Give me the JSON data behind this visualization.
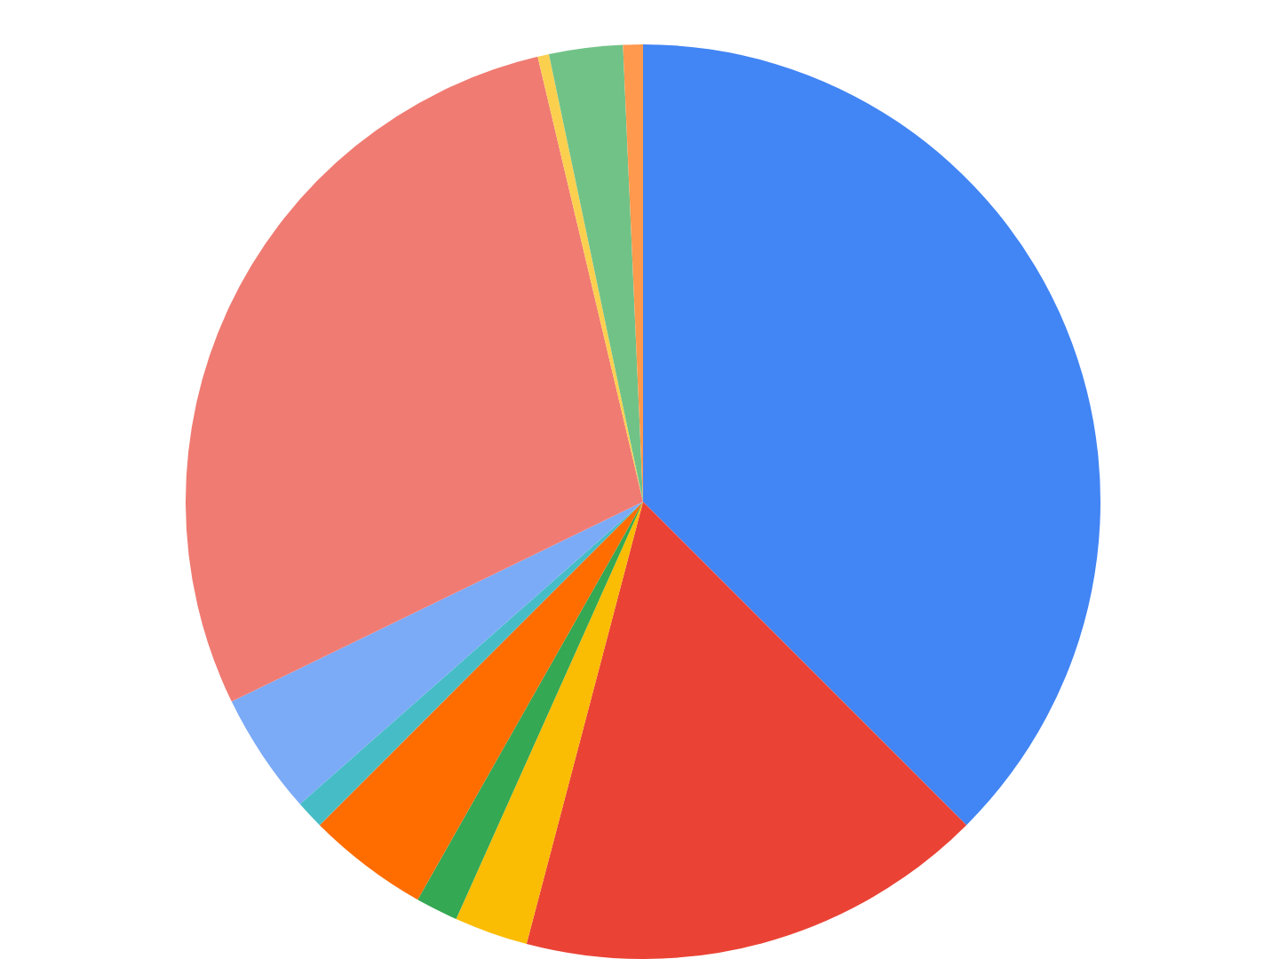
{
  "chart_data": {
    "type": "pie",
    "categories": [
      null,
      null,
      null,
      null,
      null,
      null,
      null,
      null,
      null,
      null,
      null
    ],
    "values": [
      37.5,
      16.6,
      2.6,
      1.5,
      4.3,
      1,
      4.3,
      28.5,
      0.4,
      2.6,
      0.7
    ],
    "colors": [
      "#4285f4",
      "#ea4335",
      "#fbbc04",
      "#34a853",
      "#ff6d01",
      "#46bdc6",
      "#7baaf7",
      "#f07b72",
      "#fcd04f",
      "#71c287",
      "#ff994d"
    ],
    "legend": false
  }
}
